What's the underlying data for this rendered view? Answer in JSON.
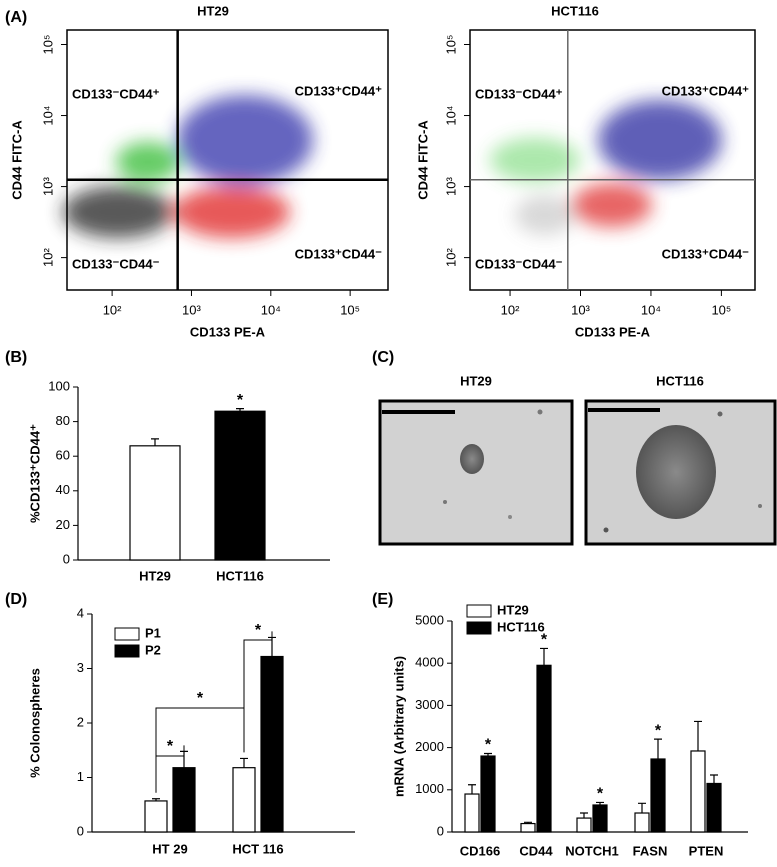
{
  "chart_data": [
    {
      "type": "flow",
      "panel": "(A)",
      "title": "HT29",
      "x_label": "CD133 PE-A",
      "y_label": "CD44 FITC-A",
      "xscale": "log",
      "yscale": "log",
      "xlim": [
        27,
        300000
      ],
      "ylim": [
        35,
        160000
      ],
      "xticks": [
        {
          "value": 100,
          "label": "10²"
        },
        {
          "value": 1000,
          "label": "10³"
        },
        {
          "value": 10000,
          "label": "10⁴"
        },
        {
          "value": 100000,
          "label": "10⁵"
        }
      ],
      "yticks": [
        {
          "value": 100,
          "label": "10²"
        },
        {
          "value": 1000,
          "label": "10³"
        },
        {
          "value": 10000,
          "label": "10⁴"
        },
        {
          "value": 100000,
          "label": "10⁵"
        }
      ],
      "gates": {
        "x": 670,
        "y": 1250
      },
      "gate_color": "#000000",
      "quadrant_labels": [
        "CD133⁻CD44⁺",
        "CD133⁺CD44⁺",
        "CD133⁻CD44⁻",
        "CD133⁺CD44⁻"
      ]
    },
    {
      "type": "flow",
      "title": "HCT116",
      "x_label": "CD133 PE-A",
      "y_label": "CD44 FITC-A",
      "xscale": "log",
      "yscale": "log",
      "xlim": [
        27,
        300000
      ],
      "ylim": [
        35,
        160000
      ],
      "xticks": [
        {
          "value": 100,
          "label": "10²"
        },
        {
          "value": 1000,
          "label": "10³"
        },
        {
          "value": 10000,
          "label": "10⁴"
        },
        {
          "value": 100000,
          "label": "10⁵"
        }
      ],
      "yticks": [
        {
          "value": 100,
          "label": "10²"
        },
        {
          "value": 1000,
          "label": "10³"
        },
        {
          "value": 10000,
          "label": "10⁴"
        },
        {
          "value": 100000,
          "label": "10⁵"
        }
      ],
      "gates": {
        "x": 660,
        "y": 1250
      },
      "gate_color": "#666666",
      "quadrant_labels": [
        "CD133⁻CD44⁺",
        "CD133⁺CD44⁺",
        "CD133⁻CD44⁻",
        "CD133⁺CD44⁻"
      ]
    },
    {
      "type": "bar",
      "panel": "(B)",
      "y_label": "%CD133⁺CD44⁺",
      "categories": [
        "HT29",
        "HCT116"
      ],
      "values": [
        66,
        86
      ],
      "errors": [
        4,
        1.5
      ],
      "colors": [
        "#ffffff",
        "#000000"
      ],
      "ylim": [
        0,
        100
      ],
      "yticks": [
        0,
        20,
        40,
        60,
        80,
        100
      ],
      "annotations": [
        "*"
      ]
    },
    {
      "type": "image",
      "panel": "(C)",
      "titles": [
        "HT29",
        "HCT116"
      ]
    },
    {
      "type": "grouped_bar",
      "panel": "(D)",
      "y_label": "% Colonospheres",
      "categories": [
        "HT 29",
        "HCT 116"
      ],
      "series": [
        {
          "name": "P1",
          "color": "#ffffff",
          "values": [
            0.57,
            1.18
          ],
          "errors": [
            0.04,
            0.17
          ]
        },
        {
          "name": "P2",
          "color": "#000000",
          "values": [
            1.18,
            3.22
          ],
          "errors": [
            0.3,
            0.35
          ]
        }
      ],
      "ylim": [
        0,
        4
      ],
      "yticks": [
        0,
        1,
        2,
        3,
        4
      ],
      "annotations": [
        "*",
        "*",
        "*"
      ]
    },
    {
      "type": "grouped_bar",
      "panel": "(E)",
      "y_label": "mRNA (Arbitrary units)",
      "categories": [
        "CD166",
        "CD44",
        "NOTCH1",
        "FASN",
        "PTEN"
      ],
      "series": [
        {
          "name": "HT29",
          "color": "#ffffff",
          "values": [
            900,
            200,
            330,
            450,
            1920
          ],
          "errors": [
            220,
            30,
            120,
            230,
            700
          ]
        },
        {
          "name": "HCT116",
          "color": "#000000",
          "values": [
            1800,
            3950,
            640,
            1730,
            1150
          ],
          "errors": [
            60,
            400,
            60,
            470,
            200
          ]
        }
      ],
      "ylim": [
        0,
        5000
      ],
      "yticks": [
        0,
        1000,
        2000,
        3000,
        4000,
        5000
      ],
      "annotations": [
        "*",
        "*",
        "*",
        "*"
      ]
    }
  ]
}
